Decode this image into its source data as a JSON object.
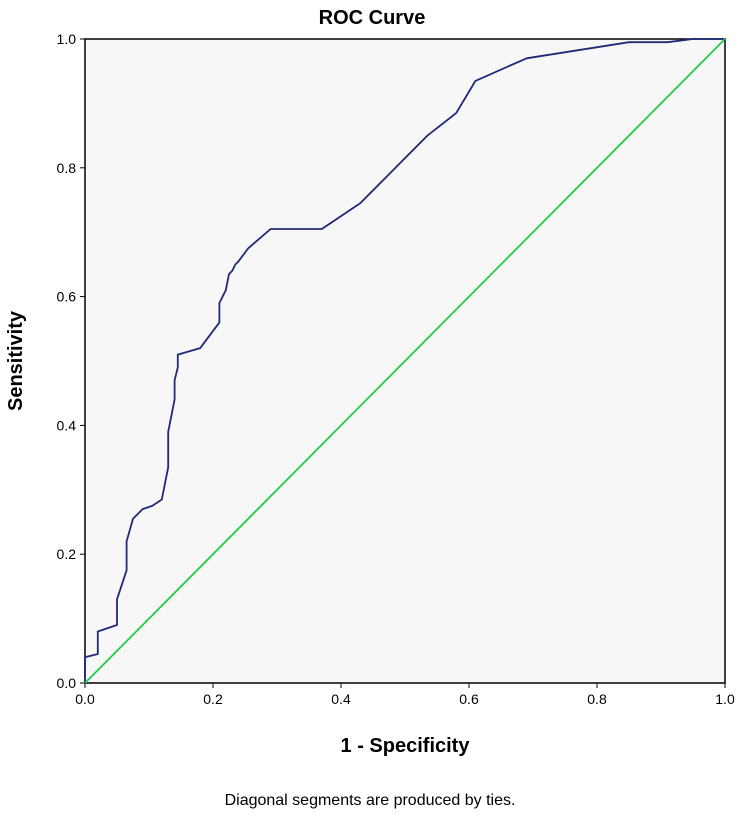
{
  "chart_data": {
    "type": "line",
    "title": "ROC Curve",
    "xlabel": "1 - Specificity",
    "ylabel": "Sensitivity",
    "footnote": "Diagonal segments are produced by ties.",
    "xlim": [
      0,
      1
    ],
    "ylim": [
      0,
      1
    ],
    "x_ticks": [
      "0.0",
      "0.2",
      "0.4",
      "0.6",
      "0.8",
      "1.0"
    ],
    "y_ticks": [
      "0.0",
      "0.2",
      "0.4",
      "0.6",
      "0.8",
      "1.0"
    ],
    "grid": false,
    "colors": {
      "plot_background": "#f7f7f7",
      "roc_line": "#1f2a77",
      "reference_line": "#22cc44",
      "frame": "#000000"
    },
    "series": [
      {
        "x": [
          0,
          0,
          0.02,
          0.02,
          0.05,
          0.05,
          0.065,
          0.065,
          0.075,
          0.09,
          0.105,
          0.12,
          0.13,
          0.13,
          0.14,
          0.14,
          0.145,
          0.145,
          0.18,
          0.21,
          0.21,
          0.22,
          0.225,
          0.23,
          0.235,
          0.24,
          0.255,
          0.29,
          0.34,
          0.37,
          0.43,
          0.47,
          0.5,
          0.535,
          0.58,
          0.595,
          0.61,
          0.69,
          0.85,
          0.91,
          0.95,
          1.0
        ],
        "y": [
          0,
          0.04,
          0.045,
          0.08,
          0.09,
          0.13,
          0.175,
          0.22,
          0.255,
          0.27,
          0.275,
          0.285,
          0.335,
          0.39,
          0.44,
          0.47,
          0.49,
          0.51,
          0.52,
          0.56,
          0.59,
          0.61,
          0.635,
          0.64,
          0.65,
          0.655,
          0.675,
          0.705,
          0.705,
          0.705,
          0.745,
          0.785,
          0.815,
          0.85,
          0.885,
          0.91,
          0.935,
          0.97,
          0.995,
          0.995,
          1.0,
          1.0
        ]
      },
      {
        "x": [
          0,
          1
        ],
        "y": [
          0,
          1
        ]
      }
    ]
  }
}
